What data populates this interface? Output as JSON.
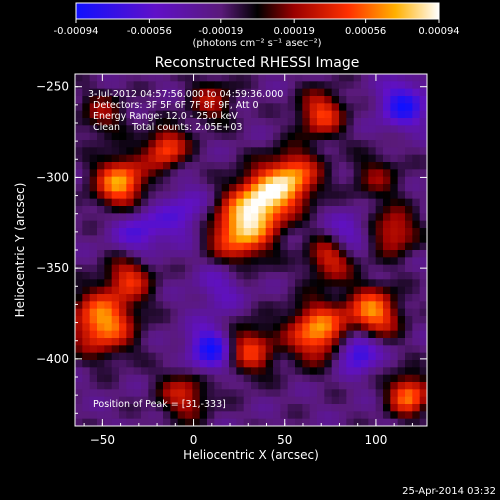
{
  "colorbar": {
    "tick_labels": [
      "-0.00094",
      "-0.00056",
      "-0.00019",
      "0.00019",
      "0.00056",
      "0.00094"
    ],
    "tick_values": [
      -0.00094,
      -0.00056,
      -0.00019,
      0.00019,
      0.00056,
      0.00094
    ],
    "range": [
      -0.00094,
      0.00094
    ],
    "unit_label": "(photons cm⁻² s⁻¹ asec⁻²)"
  },
  "chart_data": {
    "type": "heatmap",
    "title": "Reconstructed RHESSI Image",
    "xlabel": "Heliocentric X (arcsec)",
    "ylabel": "Heliocentric Y (arcsec)",
    "xlim": [
      -65,
      128
    ],
    "ylim": [
      -437,
      -243
    ],
    "xticks": [
      -50,
      0,
      50,
      100
    ],
    "yticks": [
      -250,
      -300,
      -350,
      -400
    ],
    "xtick_labels": [
      "−50",
      "0",
      "50",
      "100"
    ],
    "ytick_labels": [
      "−250",
      "−300",
      "−350",
      "−400"
    ],
    "annotations": [
      "3-Jul-2012 04:57:56.000 to 04:59:36.000",
      "Detectors: 3F 5F 6F 7F 8F 9F, Att 0",
      "Energy Range: 12.0 - 25.0 keV",
      "Clean    Total counts: 2.05E+03"
    ],
    "peak_label": "Position of Peak = [31,-333]",
    "peak": [
      31,
      -333
    ],
    "sources": [
      {
        "x": 38,
        "y": -312,
        "i": 1.0,
        "s": 11
      },
      {
        "x": 25,
        "y": -330,
        "i": 0.95,
        "s": 12
      },
      {
        "x": 55,
        "y": -300,
        "i": 0.85,
        "s": 10
      },
      {
        "x": -40,
        "y": -303,
        "i": 0.95,
        "s": 10
      },
      {
        "x": -15,
        "y": -284,
        "i": 0.75,
        "s": 8
      },
      {
        "x": -50,
        "y": -380,
        "i": 0.95,
        "s": 12
      },
      {
        "x": -35,
        "y": -355,
        "i": 0.6,
        "s": 9
      },
      {
        "x": 68,
        "y": -385,
        "i": 0.95,
        "s": 11
      },
      {
        "x": 98,
        "y": -375,
        "i": 0.9,
        "s": 10
      },
      {
        "x": 75,
        "y": -345,
        "i": 0.6,
        "s": 9
      },
      {
        "x": 110,
        "y": -330,
        "i": 0.6,
        "s": 9
      },
      {
        "x": 118,
        "y": -420,
        "i": 0.85,
        "s": 8
      },
      {
        "x": 30,
        "y": -395,
        "i": 0.7,
        "s": 10
      },
      {
        "x": -5,
        "y": -420,
        "i": 0.55,
        "s": 10
      },
      {
        "x": 70,
        "y": -265,
        "i": 0.7,
        "s": 9
      },
      {
        "x": 10,
        "y": -258,
        "i": 0.45,
        "s": 9
      },
      {
        "x": -50,
        "y": -265,
        "i": 0.4,
        "s": 9
      },
      {
        "x": 100,
        "y": -300,
        "i": 0.35,
        "s": 10
      },
      {
        "x": 15,
        "y": -360,
        "i": -0.3,
        "s": 10
      },
      {
        "x": -30,
        "y": -330,
        "i": -0.45,
        "s": 10
      },
      {
        "x": 10,
        "y": -395,
        "i": -0.8,
        "s": 9
      },
      {
        "x": 115,
        "y": -260,
        "i": -0.7,
        "s": 9
      },
      {
        "x": 90,
        "y": -395,
        "i": -0.75,
        "s": 8
      },
      {
        "x": -5,
        "y": -320,
        "i": -0.4,
        "s": 10
      },
      {
        "x": 85,
        "y": -330,
        "i": -0.4,
        "s": 8
      }
    ]
  },
  "footer": {
    "timestamp": "25-Apr-2014 03:32"
  }
}
